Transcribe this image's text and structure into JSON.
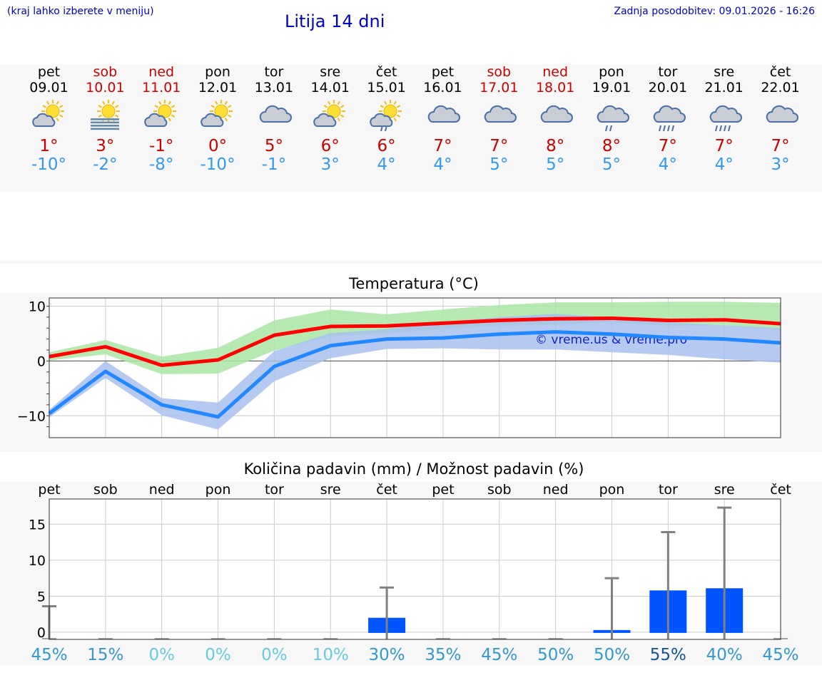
{
  "header": {
    "hint": "(kraj lahko izberete v meniju)",
    "title": "Litija 14 dni",
    "updated": "Zadnja posodobitev: 09.01.2026 - 16:26"
  },
  "colors": {
    "weekend": "#cc0000",
    "weekday": "#000000",
    "max_temp": "#cc0000",
    "min_temp": "#3399ee",
    "bar": "#0055ff"
  },
  "forecast": [
    {
      "day": "pet",
      "date": "09.01",
      "icon": "sun-cloud-icon",
      "max": "1°",
      "min": "-10°",
      "weekend": false
    },
    {
      "day": "sob",
      "date": "10.01",
      "icon": "sun-fog-icon",
      "max": "3°",
      "min": "-2°",
      "weekend": true
    },
    {
      "day": "ned",
      "date": "11.01",
      "icon": "sun-cloud-icon",
      "max": "-1°",
      "min": "-8°",
      "weekend": true
    },
    {
      "day": "pon",
      "date": "12.01",
      "icon": "sun-cloud-icon",
      "max": "0°",
      "min": "-10°",
      "weekend": false
    },
    {
      "day": "tor",
      "date": "13.01",
      "icon": "cloud-icon",
      "max": "5°",
      "min": "-1°",
      "weekend": false
    },
    {
      "day": "sre",
      "date": "14.01",
      "icon": "sun-cloud-icon",
      "max": "6°",
      "min": "3°",
      "weekend": false
    },
    {
      "day": "čet",
      "date": "15.01",
      "icon": "sun-cloud-rain-icon",
      "max": "6°",
      "min": "4°",
      "weekend": false
    },
    {
      "day": "pet",
      "date": "16.01",
      "icon": "cloud-icon",
      "max": "7°",
      "min": "4°",
      "weekend": false
    },
    {
      "day": "sob",
      "date": "17.01",
      "icon": "cloud-icon",
      "max": "7°",
      "min": "5°",
      "weekend": true
    },
    {
      "day": "ned",
      "date": "18.01",
      "icon": "cloud-icon",
      "max": "8°",
      "min": "5°",
      "weekend": true
    },
    {
      "day": "pon",
      "date": "19.01",
      "icon": "cloud-rain-icon",
      "max": "8°",
      "min": "5°",
      "weekend": false
    },
    {
      "day": "tor",
      "date": "20.01",
      "icon": "cloud-heavy-rain-icon",
      "max": "7°",
      "min": "4°",
      "weekend": false
    },
    {
      "day": "sre",
      "date": "21.01",
      "icon": "cloud-heavy-rain-icon",
      "max": "7°",
      "min": "4°",
      "weekend": false
    },
    {
      "day": "čet",
      "date": "22.01",
      "icon": "cloud-icon",
      "max": "7°",
      "min": "3°",
      "weekend": false
    }
  ],
  "chart_data": [
    {
      "type": "line",
      "title": "Temperatura (°C)",
      "ylim": [
        -14,
        11.5
      ],
      "yticks": [
        10,
        0,
        -10
      ],
      "ytick_labels": [
        "10",
        "0",
        "−10"
      ],
      "x": [
        0,
        1,
        2,
        3,
        4,
        5,
        6,
        7,
        8,
        9,
        10,
        11,
        12,
        13
      ],
      "watermark": "© vreme.us & vreme.pro",
      "series": [
        {
          "name": "max",
          "values": [
            0.8,
            2.6,
            -0.8,
            0.2,
            4.7,
            6.3,
            6.4,
            6.9,
            7.4,
            7.7,
            7.8,
            7.4,
            7.5,
            6.8
          ],
          "color": "#ff0000"
        },
        {
          "name": "min",
          "values": [
            -9.6,
            -1.9,
            -8.0,
            -10.2,
            -1.0,
            2.8,
            4.0,
            4.2,
            4.9,
            5.3,
            4.9,
            4.3,
            4.0,
            3.3
          ],
          "color": "#2288ff"
        }
      ],
      "bands": [
        {
          "name": "max-range",
          "upper": [
            1.6,
            3.8,
            0.8,
            2.4,
            7.4,
            9.4,
            8.5,
            9.4,
            10.2,
            10.7,
            10.7,
            10.8,
            10.8,
            10.6
          ],
          "lower": [
            0.1,
            1.2,
            -2.4,
            -2.3,
            1.9,
            4.5,
            5.0,
            5.8,
            6.4,
            6.6,
            7.0,
            6.4,
            6.5,
            5.6
          ],
          "color": "#aae6a6"
        },
        {
          "name": "min-range",
          "upper": [
            -8.9,
            0.0,
            -6.8,
            -7.6,
            1.8,
            5.1,
            5.8,
            7.1,
            8.0,
            8.6,
            7.9,
            7.1,
            6.5,
            6.0
          ],
          "lower": [
            -10.3,
            -3.1,
            -9.9,
            -12.5,
            -3.7,
            0.5,
            2.2,
            2.3,
            2.1,
            2.1,
            1.6,
            1.1,
            0.3,
            -0.3
          ],
          "color": "#a9c1ef"
        }
      ]
    },
    {
      "type": "bar",
      "title": "Količina padavin (mm) / Možnost padavin (%)",
      "categories": [
        "pet",
        "sob",
        "ned",
        "pon",
        "tor",
        "sre",
        "čet",
        "pet",
        "sob",
        "ned",
        "pon",
        "tor",
        "sre",
        "čet"
      ],
      "ylim": [
        -1,
        18.5
      ],
      "yticks": [
        15,
        10,
        5,
        0
      ],
      "values": [
        0,
        0,
        0,
        0,
        0,
        0,
        2.0,
        0,
        0,
        0,
        0.3,
        5.8,
        6.1,
        0
      ],
      "max_values": [
        3.6,
        0,
        0,
        0,
        0,
        0,
        6.2,
        0,
        0,
        0,
        7.5,
        13.9,
        17.3,
        0
      ],
      "probabilities": [
        "45%",
        "15%",
        "0%",
        "0%",
        "0%",
        "10%",
        "30%",
        "35%",
        "45%",
        "50%",
        "50%",
        "55%",
        "40%",
        "45%"
      ],
      "prob_colors": [
        "#3399cc",
        "#3399cc",
        "#66ccdd",
        "#66ccdd",
        "#66ccdd",
        "#66ccdd",
        "#3399cc",
        "#3399cc",
        "#3399cc",
        "#3399cc",
        "#3399cc",
        "#115599",
        "#3399cc",
        "#3399cc"
      ]
    }
  ]
}
